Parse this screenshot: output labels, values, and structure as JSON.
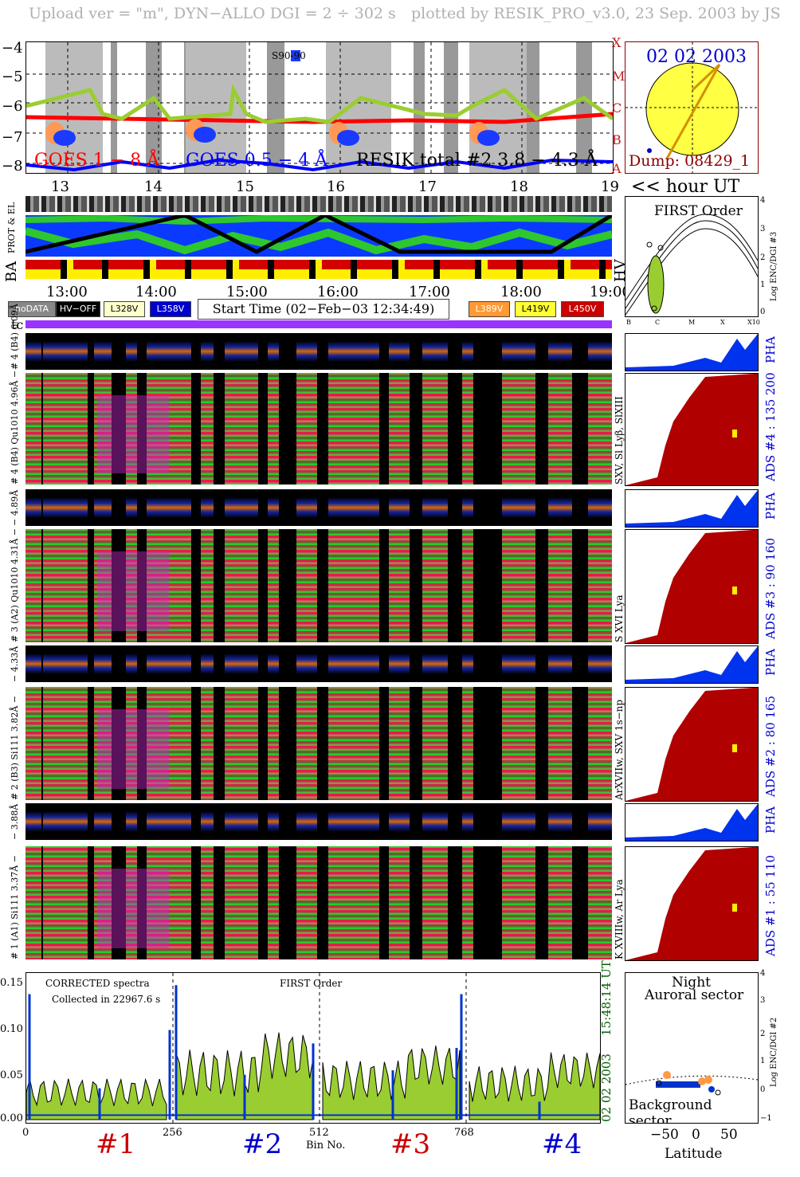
{
  "header": {
    "left": "Upload ver = \"m\", DYN−ALLO DGI =   2 ÷ 302 s",
    "right": "plotted by RESIK_PRO_v3.0, 23 Sep. 2003 by JS"
  },
  "goes": {
    "yticks": [
      "−4",
      "−5",
      "−6",
      "−7",
      "−8"
    ],
    "class_letters": [
      "X",
      "M",
      "C",
      "B",
      "A"
    ],
    "label_goes1": "GOES 1 − 8 Å",
    "label_goes2": "GOES 0.5 − 4 Å",
    "label_resik": "RESIK total #2  3.8 − 4.3 Å",
    "s9090": "S90-90",
    "colors": {
      "goes1": "#ff0000",
      "goes2": "#0000ff",
      "resik": "#9acd32"
    }
  },
  "hour_axis_top": {
    "ticks": [
      "13",
      "14",
      "15",
      "16",
      "17",
      "18",
      "19"
    ],
    "label": "<< hour UT"
  },
  "sun": {
    "date": "02 02 2003",
    "dump": "Dump: 08429_1"
  },
  "side_labels": {
    "prot_el": "PROT & EL",
    "ba": "BA",
    "hv": "HV",
    "tc": "tc"
  },
  "hour_axis_mid": {
    "ticks": [
      "13:00",
      "14:00",
      "15:00",
      "16:00",
      "17:00",
      "18:00",
      "19:00"
    ]
  },
  "legend": {
    "nodata": "noDATA",
    "hvoff": "HV−OFF",
    "l328": "L328V",
    "l358": "L358V",
    "start_time": "Start Time (02−Feb−03 12:34:49)",
    "l389": "L389V",
    "l419": "L419V",
    "l450": "L450V"
  },
  "first_order": {
    "title": "FIRST Order",
    "ylabel": "Log ENC/DGI #3",
    "yticks": [
      "4",
      "3",
      "2",
      "1",
      "0"
    ],
    "xticks": [
      "B",
      "C",
      "M",
      "X",
      "X10"
    ]
  },
  "channels": [
    {
      "pha_label": "# 4 (B4)  6.09Å",
      "main_label": "# 4 (B4) Qu1010 4.96Å −",
      "right_label": "SXV, Sl Lyβ, SlXIII",
      "ads": "ADS #4 :   135 200",
      "pha": "PHA"
    },
    {
      "pha_label": "− 4.89Å",
      "main_label": "# 3 (A2) Qu1010 4.31Å −",
      "right_label": "S XVI Lya",
      "ads": "ADS #3 :   90 160",
      "pha": "PHA"
    },
    {
      "pha_label": "− 4.33Å",
      "main_label": "# 2 (B3) Si111 3.82Å −",
      "right_label": "ArXVIIw, SXV 1s−np",
      "ads": "ADS #2 :   80 165",
      "pha": "PHA"
    },
    {
      "pha_label": "− 3.88Å",
      "main_label": "# 1 (A1) Si111 3.37Å −",
      "right_label": "K XVIIIw, Ar Lya",
      "ads": "ADS #1 :   55 110",
      "pha": "PHA"
    }
  ],
  "spectrum": {
    "title_left": "CORRECTED spectra",
    "collected": "Collected in 22967.6 s",
    "first_order": "FIRST Order",
    "time": "15:48:14 UT",
    "date": "02 02 2003",
    "xticks": [
      "0",
      "256",
      "512",
      "768"
    ],
    "xlabel": "Bin No.",
    "yticks": [
      "0.15",
      "0.10",
      "0.05",
      "0.00"
    ],
    "channels": [
      "#1",
      "#2",
      "#3",
      "#4"
    ],
    "channel_colors": [
      "#cc0000",
      "#0000cc",
      "#cc0000",
      "#0000cc"
    ]
  },
  "latitude": {
    "night": "Night",
    "auroral": "Auroral sector",
    "background": "Background sector",
    "xticks": [
      "−50",
      "0",
      "50"
    ],
    "xlabel": "Latitude",
    "yticks": [
      "4",
      "3",
      "2",
      "1",
      "0",
      "−1"
    ],
    "ylabel": "Log ENC/DGI #2"
  }
}
